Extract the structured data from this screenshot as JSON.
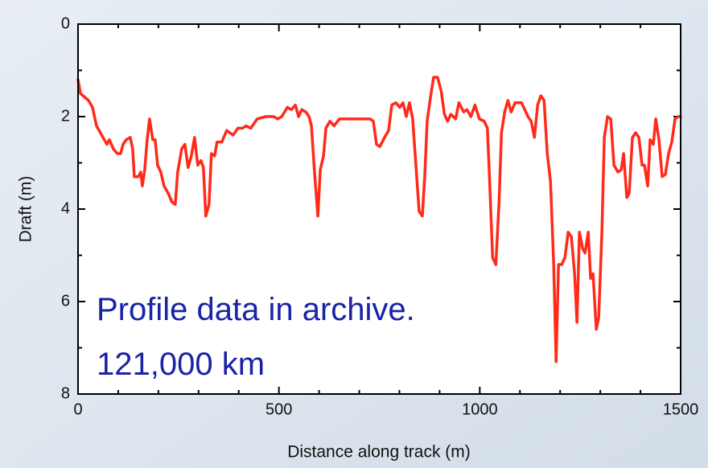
{
  "chart_data": {
    "type": "line",
    "xlabel": "Distance along track (m)",
    "ylabel": "Draft (m)",
    "annotations": [
      "Profile data in archive.",
      "121,000 km"
    ],
    "xlim": [
      0,
      1500
    ],
    "xticks": [
      0,
      500,
      1000,
      1500
    ],
    "xminorticks": [
      100,
      200,
      300,
      400,
      600,
      700,
      800,
      900,
      1100,
      1200,
      1300,
      1400
    ],
    "ylim": [
      8,
      0
    ],
    "yticks": [
      0,
      2,
      4,
      6,
      8
    ],
    "yminorticks": [
      1,
      3,
      5,
      7
    ],
    "x": [
      0,
      6,
      26,
      36,
      46,
      62,
      72,
      78,
      88,
      98,
      106,
      112,
      120,
      130,
      136,
      140,
      150,
      156,
      160,
      166,
      172,
      178,
      186,
      192,
      198,
      206,
      214,
      224,
      234,
      242,
      248,
      258,
      266,
      274,
      282,
      290,
      298,
      306,
      312,
      318,
      326,
      332,
      340,
      346,
      358,
      370,
      386,
      398,
      410,
      418,
      430,
      446,
      467,
      487,
      497,
      507,
      521,
      531,
      541,
      549,
      557,
      567,
      575,
      581,
      589,
      597,
      603,
      611,
      617,
      627,
      637,
      651,
      667,
      687,
      727,
      735,
      743,
      751,
      763,
      773,
      781,
      791,
      801,
      809,
      817,
      825,
      833,
      841,
      849,
      857,
      863,
      869,
      877,
      885,
      895,
      904,
      912,
      920,
      928,
      940,
      948,
      960,
      968,
      978,
      988,
      999,
      1011,
      1019,
      1025,
      1032,
      1040,
      1048,
      1054,
      1062,
      1070,
      1078,
      1088,
      1104,
      1112,
      1120,
      1128,
      1136,
      1144,
      1152,
      1160,
      1168,
      1176,
      1184,
      1190,
      1196,
      1204,
      1212,
      1220,
      1228,
      1236,
      1242,
      1248,
      1256,
      1262,
      1270,
      1276,
      1282,
      1290,
      1296,
      1304,
      1310,
      1318,
      1326,
      1334,
      1344,
      1352,
      1358,
      1366,
      1372,
      1380,
      1388,
      1396,
      1404,
      1410,
      1418,
      1424,
      1432,
      1438,
      1446,
      1454,
      1462,
      1470,
      1478,
      1486,
      1494,
      1500
    ],
    "series": [
      {
        "color": "#ff2a1a",
        "values": [
          1.2,
          1.5,
          1.65,
          1.8,
          2.2,
          2.45,
          2.6,
          2.5,
          2.7,
          2.8,
          2.8,
          2.6,
          2.5,
          2.45,
          2.7,
          3.3,
          3.3,
          3.2,
          3.5,
          3.15,
          2.5,
          2.05,
          2.5,
          2.5,
          3.05,
          3.2,
          3.5,
          3.65,
          3.85,
          3.9,
          3.2,
          2.7,
          2.6,
          3.1,
          2.85,
          2.45,
          3.05,
          2.95,
          3.1,
          4.15,
          3.9,
          2.8,
          2.85,
          2.55,
          2.55,
          2.3,
          2.4,
          2.25,
          2.25,
          2.2,
          2.25,
          2.05,
          2.0,
          2.0,
          2.05,
          2.0,
          1.8,
          1.85,
          1.75,
          2.0,
          1.85,
          1.9,
          2.0,
          2.2,
          3.25,
          4.15,
          3.15,
          2.85,
          2.25,
          2.1,
          2.2,
          2.05,
          2.05,
          2.05,
          2.05,
          2.1,
          2.6,
          2.65,
          2.45,
          2.3,
          1.75,
          1.7,
          1.8,
          1.7,
          2.0,
          1.7,
          2.05,
          3.05,
          4.05,
          4.15,
          3.3,
          2.1,
          1.6,
          1.15,
          1.15,
          1.45,
          1.95,
          2.1,
          1.95,
          2.05,
          1.7,
          1.9,
          1.85,
          2.0,
          1.75,
          2.05,
          2.1,
          2.25,
          3.5,
          5.05,
          5.2,
          3.85,
          2.35,
          1.9,
          1.65,
          1.9,
          1.7,
          1.7,
          1.85,
          2.0,
          2.1,
          2.45,
          1.75,
          1.55,
          1.65,
          2.8,
          3.4,
          5.2,
          7.3,
          5.2,
          5.2,
          5.05,
          4.5,
          4.6,
          5.4,
          6.45,
          4.5,
          4.85,
          4.95,
          4.5,
          5.5,
          5.4,
          6.6,
          6.35,
          4.5,
          2.45,
          2.0,
          2.05,
          3.05,
          3.2,
          3.15,
          2.8,
          3.75,
          3.65,
          2.45,
          2.35,
          2.45,
          3.05,
          3.05,
          3.5,
          2.5,
          2.6,
          2.05,
          2.5,
          3.3,
          3.25,
          2.8,
          2.55,
          2.05,
          2.0,
          2.0
        ]
      }
    ]
  }
}
